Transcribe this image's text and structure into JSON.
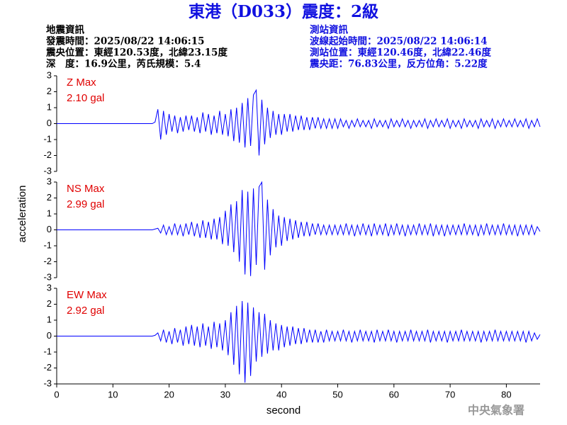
{
  "header": {
    "title": "東港（D033）震度：2級",
    "left": [
      "地震資訊",
      "發震時間：2025/08/22 14:06:15",
      "震央位置：東經120.53度，北緯23.15度",
      "深　度：16.9公里，芮氏規模：5.4"
    ],
    "right": [
      "測站資訊",
      "波線起始時間：2025/08/22 14:06:14",
      "測站位置：東經120.46度，北緯22.46度",
      "震央距：76.83公里，反方位角：5.22度"
    ],
    "xlabel": "second",
    "ylabel": "acceleration",
    "watermark": "中央氣象署"
  },
  "chart_data": [
    {
      "type": "line",
      "label": "Z Max",
      "max_label": "2.10 gal",
      "color": "#0000ff",
      "xlim": [
        0,
        86
      ],
      "ylim": [
        -3,
        3
      ],
      "yticks": [
        -3,
        -2,
        -1,
        0,
        1,
        2,
        3
      ],
      "x": [
        0,
        5,
        10,
        15,
        17,
        17.5,
        18,
        18.5,
        19,
        19.5,
        20,
        20.5,
        21,
        21.5,
        22,
        22.5,
        23,
        23.5,
        24,
        24.5,
        25,
        25.5,
        26,
        26.5,
        27,
        27.5,
        28,
        28.5,
        29,
        29.5,
        30,
        30.5,
        31,
        31.5,
        32,
        32.5,
        33,
        33.5,
        34,
        34.5,
        35,
        35.5,
        36,
        36.5,
        37,
        37.5,
        38,
        38.5,
        39,
        39.5,
        40,
        40.5,
        41,
        41.5,
        42,
        42.5,
        43,
        43.5,
        44,
        44.5,
        45,
        45.5,
        46,
        46.5,
        47,
        47.5,
        48,
        48.5,
        49,
        49.5,
        50,
        50.5,
        51,
        51.5,
        52,
        52.5,
        53,
        53.5,
        54,
        54.5,
        55,
        55.5,
        56,
        56.5,
        57,
        57.5,
        58,
        58.5,
        59,
        59.5,
        60,
        60.5,
        61,
        61.5,
        62,
        62.5,
        63,
        63.5,
        64,
        64.5,
        65,
        65.5,
        66,
        66.5,
        67,
        67.5,
        68,
        68.5,
        69,
        69.5,
        70,
        70.5,
        71,
        71.5,
        72,
        72.5,
        73,
        73.5,
        74,
        74.5,
        75,
        75.5,
        76,
        76.5,
        77,
        77.5,
        78,
        78.5,
        79,
        79.5,
        80,
        80.5,
        81,
        81.5,
        82,
        82.5,
        83,
        83.5,
        84,
        84.5,
        85,
        85.5,
        86
      ],
      "values": [
        0,
        0,
        0,
        0,
        0,
        0.1,
        0.9,
        -1.0,
        0.8,
        -0.7,
        0.6,
        -0.5,
        0.5,
        -0.6,
        0.4,
        -0.5,
        0.5,
        -0.4,
        0.5,
        -0.5,
        0.4,
        -0.6,
        0.7,
        -0.5,
        0.6,
        -0.7,
        0.5,
        -0.6,
        0.8,
        -0.7,
        0.6,
        -0.8,
        0.9,
        -1.1,
        1.0,
        -1.2,
        1.3,
        -1.5,
        1.6,
        -1.4,
        1.8,
        2.1,
        -2.0,
        1.5,
        -1.3,
        1.0,
        -0.9,
        0.8,
        -0.7,
        0.6,
        -0.7,
        0.6,
        -0.5,
        0.6,
        -0.5,
        0.5,
        -0.4,
        0.5,
        -0.4,
        0.4,
        -0.4,
        0.4,
        -0.3,
        0.4,
        -0.3,
        0.3,
        -0.3,
        0.3,
        -0.3,
        0.3,
        -0.3,
        0.3,
        -0.2,
        0.2,
        -0.3,
        0.2,
        -0.2,
        0.3,
        -0.2,
        0.2,
        -0.2,
        0.2,
        -0.3,
        0.3,
        -0.2,
        0.2,
        -0.2,
        0.2,
        -0.3,
        0.3,
        -0.2,
        0.2,
        -0.2,
        0.3,
        -0.2,
        0.2,
        -0.3,
        0.2,
        -0.2,
        0.2,
        -0.2,
        0.3,
        -0.3,
        0.2,
        -0.2,
        0.3,
        -0.2,
        0.2,
        -0.2,
        0.3,
        -0.3,
        0.2,
        -0.2,
        0.2,
        -0.3,
        0.3,
        -0.2,
        0.2,
        -0.2,
        0.2,
        -0.3,
        0.3,
        -0.2,
        0.2,
        -0.2,
        0.3,
        -0.3,
        0.2,
        -0.2,
        0.3,
        -0.2,
        0.2,
        -0.2,
        0.3,
        -0.2,
        0.2,
        -0.2,
        0.3,
        -0.3,
        0.2,
        -0.2,
        0.3,
        -0.2
      ]
    },
    {
      "type": "line",
      "label": "NS Max",
      "max_label": "2.99 gal",
      "color": "#0000ff",
      "xlim": [
        0,
        86
      ],
      "ylim": [
        -3,
        3
      ],
      "yticks": [
        -3,
        -2,
        -1,
        0,
        1,
        2,
        3
      ],
      "x": [
        0,
        5,
        10,
        15,
        17,
        17.5,
        18,
        18.5,
        19,
        19.5,
        20,
        20.5,
        21,
        21.5,
        22,
        22.5,
        23,
        23.5,
        24,
        24.5,
        25,
        25.5,
        26,
        26.5,
        27,
        27.5,
        28,
        28.5,
        29,
        29.5,
        30,
        30.5,
        31,
        31.5,
        32,
        32.5,
        33,
        33.5,
        34,
        34.5,
        35,
        35.5,
        36,
        36.5,
        37,
        37.5,
        38,
        38.5,
        39,
        39.5,
        40,
        40.5,
        41,
        41.5,
        42,
        42.5,
        43,
        43.5,
        44,
        44.5,
        45,
        45.5,
        46,
        46.5,
        47,
        47.5,
        48,
        48.5,
        49,
        49.5,
        50,
        50.5,
        51,
        51.5,
        52,
        52.5,
        53,
        53.5,
        54,
        54.5,
        55,
        55.5,
        56,
        56.5,
        57,
        57.5,
        58,
        58.5,
        59,
        59.5,
        60,
        60.5,
        61,
        61.5,
        62,
        62.5,
        63,
        63.5,
        64,
        64.5,
        65,
        65.5,
        66,
        66.5,
        67,
        67.5,
        68,
        68.5,
        69,
        69.5,
        70,
        70.5,
        71,
        71.5,
        72,
        72.5,
        73,
        73.5,
        74,
        74.5,
        75,
        75.5,
        76,
        76.5,
        77,
        77.5,
        78,
        78.5,
        79,
        79.5,
        80,
        80.5,
        81,
        81.5,
        82,
        82.5,
        83,
        83.5,
        84,
        84.5,
        85,
        85.5,
        86
      ],
      "values": [
        0,
        0,
        0,
        0,
        0,
        0.05,
        0.1,
        -0.2,
        0.3,
        -0.3,
        0.2,
        -0.3,
        0.4,
        -0.3,
        0.3,
        -0.4,
        0.4,
        -0.3,
        0.5,
        -0.4,
        0.4,
        -0.5,
        0.6,
        -0.5,
        0.5,
        -0.6,
        0.7,
        -0.6,
        0.8,
        -0.9,
        1.2,
        -1.0,
        1.6,
        -1.4,
        1.8,
        -2.0,
        2.5,
        -2.8,
        2.4,
        -2.9,
        2.6,
        -2.2,
        2.7,
        2.99,
        -2.5,
        1.9,
        -1.6,
        1.3,
        -1.1,
        0.9,
        -1.0,
        0.8,
        -0.7,
        0.7,
        -0.6,
        0.6,
        -0.5,
        0.5,
        -0.4,
        0.5,
        -0.4,
        0.4,
        -0.3,
        0.4,
        -0.3,
        0.3,
        -0.3,
        0.3,
        -0.3,
        0.3,
        -0.3,
        0.3,
        -0.3,
        0.4,
        -0.3,
        0.3,
        -0.4,
        0.3,
        -0.3,
        0.4,
        -0.3,
        0.3,
        -0.4,
        0.4,
        -0.3,
        0.3,
        -0.3,
        0.4,
        -0.4,
        0.3,
        -0.3,
        0.4,
        -0.3,
        0.3,
        -0.4,
        0.3,
        -0.3,
        0.3,
        -0.3,
        0.4,
        -0.3,
        0.3,
        -0.3,
        0.4,
        -0.4,
        0.3,
        -0.3,
        0.3,
        -0.4,
        0.3,
        -0.3,
        0.3,
        -0.3,
        0.3,
        -0.3,
        0.4,
        -0.3,
        0.3,
        -0.3,
        0.3,
        -0.4,
        0.3,
        -0.3,
        0.4,
        -0.3,
        0.3,
        -0.3,
        0.3,
        -0.3,
        0.4,
        -0.3,
        0.3,
        -0.3,
        0.3,
        -0.4,
        0.3,
        -0.3,
        0.3,
        -0.3,
        0.3,
        -0.3,
        0.2,
        -0.1
      ]
    },
    {
      "type": "line",
      "label": "EW Max",
      "max_label": "2.92 gal",
      "color": "#0000ff",
      "xlim": [
        0,
        86
      ],
      "ylim": [
        -3,
        3
      ],
      "yticks": [
        -3,
        -2,
        -1,
        0,
        1,
        2,
        3
      ],
      "xticks": [
        0,
        10,
        20,
        30,
        40,
        50,
        60,
        70,
        80
      ],
      "x": [
        0,
        5,
        10,
        15,
        17,
        17.5,
        18,
        18.5,
        19,
        19.5,
        20,
        20.5,
        21,
        21.5,
        22,
        22.5,
        23,
        23.5,
        24,
        24.5,
        25,
        25.5,
        26,
        26.5,
        27,
        27.5,
        28,
        28.5,
        29,
        29.5,
        30,
        30.5,
        31,
        31.5,
        32,
        32.5,
        33,
        33.5,
        34,
        34.5,
        35,
        35.5,
        36,
        36.5,
        37,
        37.5,
        38,
        38.5,
        39,
        39.5,
        40,
        40.5,
        41,
        41.5,
        42,
        42.5,
        43,
        43.5,
        44,
        44.5,
        45,
        45.5,
        46,
        46.5,
        47,
        47.5,
        48,
        48.5,
        49,
        49.5,
        50,
        50.5,
        51,
        51.5,
        52,
        52.5,
        53,
        53.5,
        54,
        54.5,
        55,
        55.5,
        56,
        56.5,
        57,
        57.5,
        58,
        58.5,
        59,
        59.5,
        60,
        60.5,
        61,
        61.5,
        62,
        62.5,
        63,
        63.5,
        64,
        64.5,
        65,
        65.5,
        66,
        66.5,
        67,
        67.5,
        68,
        68.5,
        69,
        69.5,
        70,
        70.5,
        71,
        71.5,
        72,
        72.5,
        73,
        73.5,
        74,
        74.5,
        75,
        75.5,
        76,
        76.5,
        77,
        77.5,
        78,
        78.5,
        79,
        79.5,
        80,
        80.5,
        81,
        81.5,
        82,
        82.5,
        83,
        83.5,
        84,
        84.5,
        85,
        85.5,
        86
      ],
      "values": [
        0,
        0,
        0,
        0,
        0,
        0.05,
        0.2,
        -0.3,
        0.4,
        -0.4,
        0.3,
        -0.5,
        0.5,
        -0.4,
        0.4,
        -0.6,
        0.6,
        -0.5,
        0.7,
        -0.6,
        0.6,
        -0.7,
        0.8,
        -0.6,
        0.6,
        -0.8,
        0.9,
        -0.7,
        0.8,
        -0.9,
        1.0,
        -1.2,
        1.5,
        -1.8,
        1.9,
        -2.4,
        2.2,
        -2.92,
        2.1,
        -2.5,
        1.8,
        -1.6,
        1.5,
        -1.3,
        1.4,
        -1.1,
        1.0,
        -0.9,
        0.8,
        -0.9,
        0.7,
        -0.7,
        0.6,
        -0.6,
        0.6,
        -0.5,
        0.5,
        -0.5,
        0.5,
        -0.4,
        0.4,
        -0.4,
        0.4,
        -0.4,
        0.3,
        -0.4,
        0.4,
        -0.3,
        0.3,
        -0.3,
        0.3,
        -0.3,
        0.4,
        -0.3,
        0.3,
        -0.4,
        0.3,
        -0.3,
        0.4,
        -0.3,
        0.3,
        -0.3,
        0.3,
        -0.4,
        0.4,
        -0.3,
        0.3,
        -0.3,
        0.4,
        -0.3,
        0.3,
        -0.4,
        0.3,
        -0.3,
        0.3,
        -0.3,
        0.4,
        -0.3,
        0.3,
        -0.3,
        0.3,
        -0.3,
        0.4,
        -0.4,
        0.3,
        -0.3,
        0.3,
        -0.3,
        0.3,
        -0.4,
        0.3,
        -0.3,
        0.3,
        -0.3,
        0.4,
        -0.3,
        0.3,
        -0.3,
        0.3,
        -0.3,
        0.3,
        -0.4,
        0.3,
        -0.3,
        0.3,
        -0.3,
        0.4,
        -0.3,
        0.3,
        -0.3,
        0.3,
        -0.3,
        0.3,
        -0.3,
        0.3,
        -0.3,
        0.3,
        -0.4,
        0.3,
        -0.3,
        0.2,
        -0.2,
        0.1
      ]
    }
  ]
}
